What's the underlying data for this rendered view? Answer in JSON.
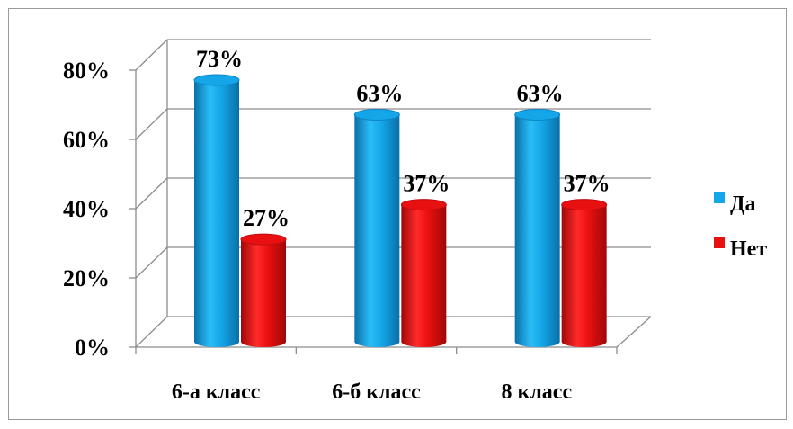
{
  "chart_data": {
    "type": "bar",
    "title": "",
    "xlabel": "",
    "ylabel": "",
    "categories": [
      "6-а класс",
      "6-б класс",
      "8 класс"
    ],
    "series": [
      {
        "name": "Да",
        "values": [
          73,
          63,
          63
        ],
        "labels": [
          "73%",
          "63%",
          "63%"
        ],
        "color": "#14a6e8"
      },
      {
        "name": "Нет",
        "values": [
          27,
          37,
          37
        ],
        "labels": [
          "27%",
          "37%",
          "37%"
        ],
        "color": "#e81010"
      }
    ],
    "ylim": [
      0,
      80
    ],
    "yticks": [
      0,
      20,
      40,
      60,
      80
    ],
    "ytick_labels": [
      "0%",
      "20%",
      "40%",
      "60%",
      "80%"
    ],
    "grid": true,
    "legend": "right",
    "style": "3d-cylinder"
  }
}
